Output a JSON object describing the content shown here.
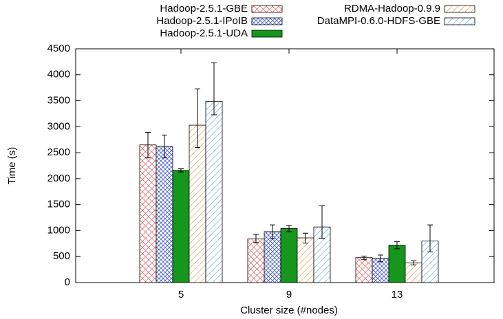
{
  "chart_data": {
    "type": "bar",
    "x_label": "Cluster size (#nodes)",
    "y_label": "Time (s)",
    "categories": [
      "5",
      "9",
      "13"
    ],
    "ylim": [
      0,
      4500
    ],
    "yticks": [
      0,
      500,
      1000,
      1500,
      2000,
      2500,
      3000,
      3500,
      4000,
      4500
    ],
    "series": [
      {
        "name": "Hadoop-2.5.1-GBE",
        "color": "#e87878",
        "pattern": "crosshatch",
        "values": [
          2650,
          840,
          480
        ],
        "err_low": [
          2400,
          770,
          440
        ],
        "err_high": [
          2890,
          930,
          510
        ]
      },
      {
        "name": "Hadoop-2.5.1-IPoIB",
        "color": "#4a5fd0",
        "pattern": "crosshatch-dense",
        "values": [
          2620,
          980,
          470
        ],
        "err_low": [
          2400,
          840,
          400
        ],
        "err_high": [
          2840,
          1110,
          530
        ]
      },
      {
        "name": "Hadoop-2.5.1-UDA",
        "color": "#17961e",
        "pattern": "solid",
        "values": [
          2160,
          1040,
          720
        ],
        "err_low": [
          2130,
          980,
          650
        ],
        "err_high": [
          2190,
          1100,
          790
        ]
      },
      {
        "name": "RDMA-Hadoop-0.9.9",
        "color": "#f2b27a",
        "pattern": "diagonal",
        "values": [
          3030,
          860,
          380
        ],
        "err_low": [
          2600,
          760,
          340
        ],
        "err_high": [
          3730,
          950,
          420
        ]
      },
      {
        "name": "DataMPI-0.6.0-HDFS-GBE",
        "color": "#8ec6e6",
        "pattern": "diagonal",
        "values": [
          3490,
          1070,
          800
        ],
        "err_low": [
          3230,
          850,
          590
        ],
        "err_high": [
          4230,
          1480,
          1110
        ]
      }
    ]
  }
}
